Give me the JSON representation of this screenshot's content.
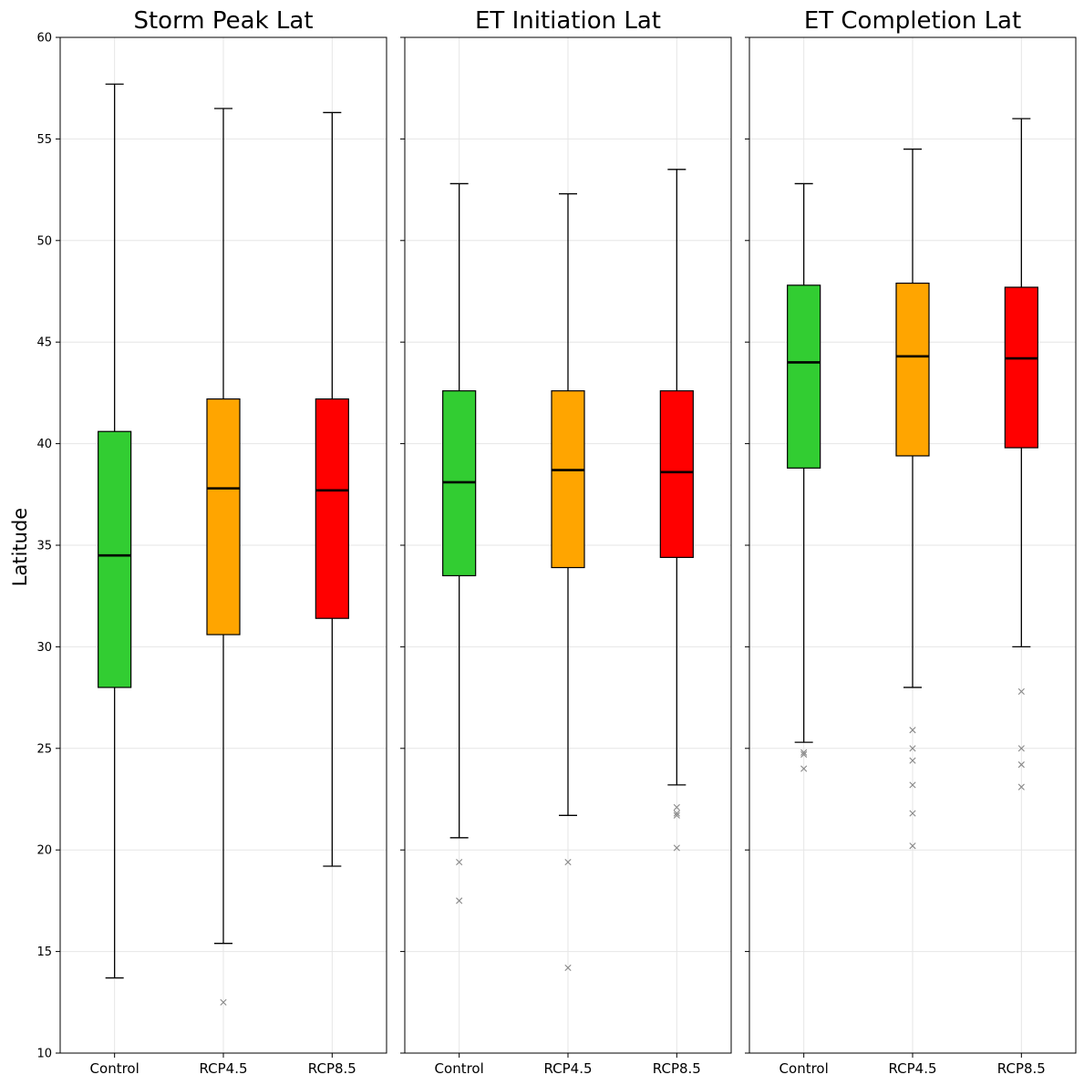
{
  "chart_data": {
    "type": "boxplot",
    "ylabel": "Latitude",
    "ylim": [
      10,
      60
    ],
    "yticks": [
      10,
      15,
      20,
      25,
      30,
      35,
      40,
      45,
      50,
      55,
      60
    ],
    "grid": true,
    "shared_y": true,
    "categories": [
      "Control",
      "RCP4.5",
      "RCP8.5"
    ],
    "colors": [
      "#32cd32",
      "#ffa500",
      "#ff0000"
    ],
    "panels": [
      {
        "title": "Storm Peak Lat",
        "boxes": [
          {
            "category": "Control",
            "whisker_low": 13.7,
            "q1": 28.0,
            "median": 34.5,
            "q3": 40.6,
            "whisker_high": 57.7,
            "outliers": []
          },
          {
            "category": "RCP4.5",
            "whisker_low": 15.4,
            "q1": 30.6,
            "median": 37.8,
            "q3": 42.2,
            "whisker_high": 56.5,
            "outliers": [
              12.5
            ]
          },
          {
            "category": "RCP8.5",
            "whisker_low": 19.2,
            "q1": 31.4,
            "median": 37.7,
            "q3": 42.2,
            "whisker_high": 56.3,
            "outliers": []
          }
        ]
      },
      {
        "title": "ET Initiation Lat",
        "boxes": [
          {
            "category": "Control",
            "whisker_low": 20.6,
            "q1": 33.5,
            "median": 38.1,
            "q3": 42.6,
            "whisker_high": 52.8,
            "outliers": [
              19.4,
              17.5
            ]
          },
          {
            "category": "RCP4.5",
            "whisker_low": 21.7,
            "q1": 33.9,
            "median": 38.7,
            "q3": 42.6,
            "whisker_high": 52.3,
            "outliers": [
              19.4,
              14.2
            ]
          },
          {
            "category": "RCP8.5",
            "whisker_low": 23.2,
            "q1": 34.4,
            "median": 38.6,
            "q3": 42.6,
            "whisker_high": 53.5,
            "outliers": [
              22.1,
              21.8,
              21.7,
              20.1
            ]
          }
        ]
      },
      {
        "title": "ET Completion Lat",
        "boxes": [
          {
            "category": "Control",
            "whisker_low": 25.3,
            "q1": 38.8,
            "median": 44.0,
            "q3": 47.8,
            "whisker_high": 52.8,
            "outliers": [
              24.8,
              24.7,
              24.0
            ]
          },
          {
            "category": "RCP4.5",
            "whisker_low": 28.0,
            "q1": 39.4,
            "median": 44.3,
            "q3": 47.9,
            "whisker_high": 54.5,
            "outliers": [
              25.9,
              25.0,
              24.4,
              23.2,
              21.8,
              20.2
            ]
          },
          {
            "category": "RCP8.5",
            "whisker_low": 30.0,
            "q1": 39.8,
            "median": 44.2,
            "q3": 47.7,
            "whisker_high": 56.0,
            "outliers": [
              27.8,
              25.0,
              24.2,
              23.1
            ]
          }
        ]
      }
    ]
  }
}
